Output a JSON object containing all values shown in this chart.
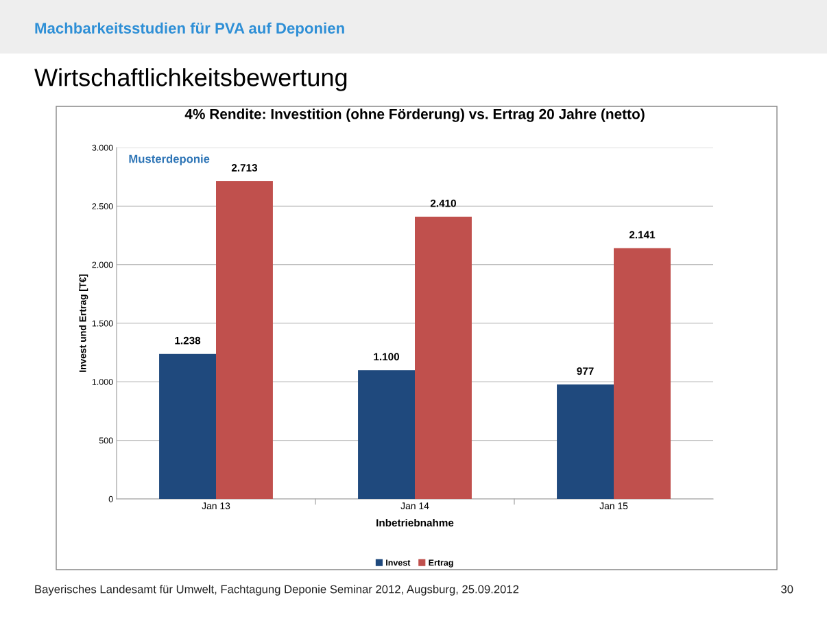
{
  "chart_data": {
    "type": "bar",
    "title": "4% Rendite: Investition (ohne Förderung) vs. Ertrag 20 Jahre (netto)",
    "xlabel": "Inbetriebnahme",
    "ylabel": "Invest und Ertrag [T€]",
    "categories": [
      "Jan 13",
      "Jan 14",
      "Jan 15"
    ],
    "series": [
      {
        "name": "Invest",
        "color": "#1f497d",
        "values": [
          1238,
          1100,
          977
        ],
        "value_labels": [
          "1.238",
          "1.100",
          "977"
        ]
      },
      {
        "name": "Ertrag",
        "color": "#c0504d",
        "values": [
          2713,
          2410,
          2141
        ],
        "value_labels": [
          "2.713",
          "2.410",
          "2.141"
        ]
      }
    ],
    "ylim": [
      0,
      3000
    ],
    "yticks": [
      0,
      {
        "value": 500,
        "label": "500"
      },
      {
        "value": 1000,
        "label": "1.000"
      },
      {
        "value": 1500,
        "label": "1.500"
      },
      {
        "value": 2000,
        "label": "2.000"
      },
      {
        "value": 2500,
        "label": "2.500"
      },
      {
        "value": 3000,
        "label": "3.000"
      }
    ],
    "grid": "y",
    "legend": "bottom",
    "annotations": [
      "Machbarkeitsstudien für PVA auf Deponien",
      "Wirtschaftlichkeitsbewertung",
      "Musterdeponie",
      "Bayerisches Landesamt für Umwelt, Fachtagung Deponie Seminar 2012, Augsburg, 25.09.2012",
      "30"
    ]
  }
}
